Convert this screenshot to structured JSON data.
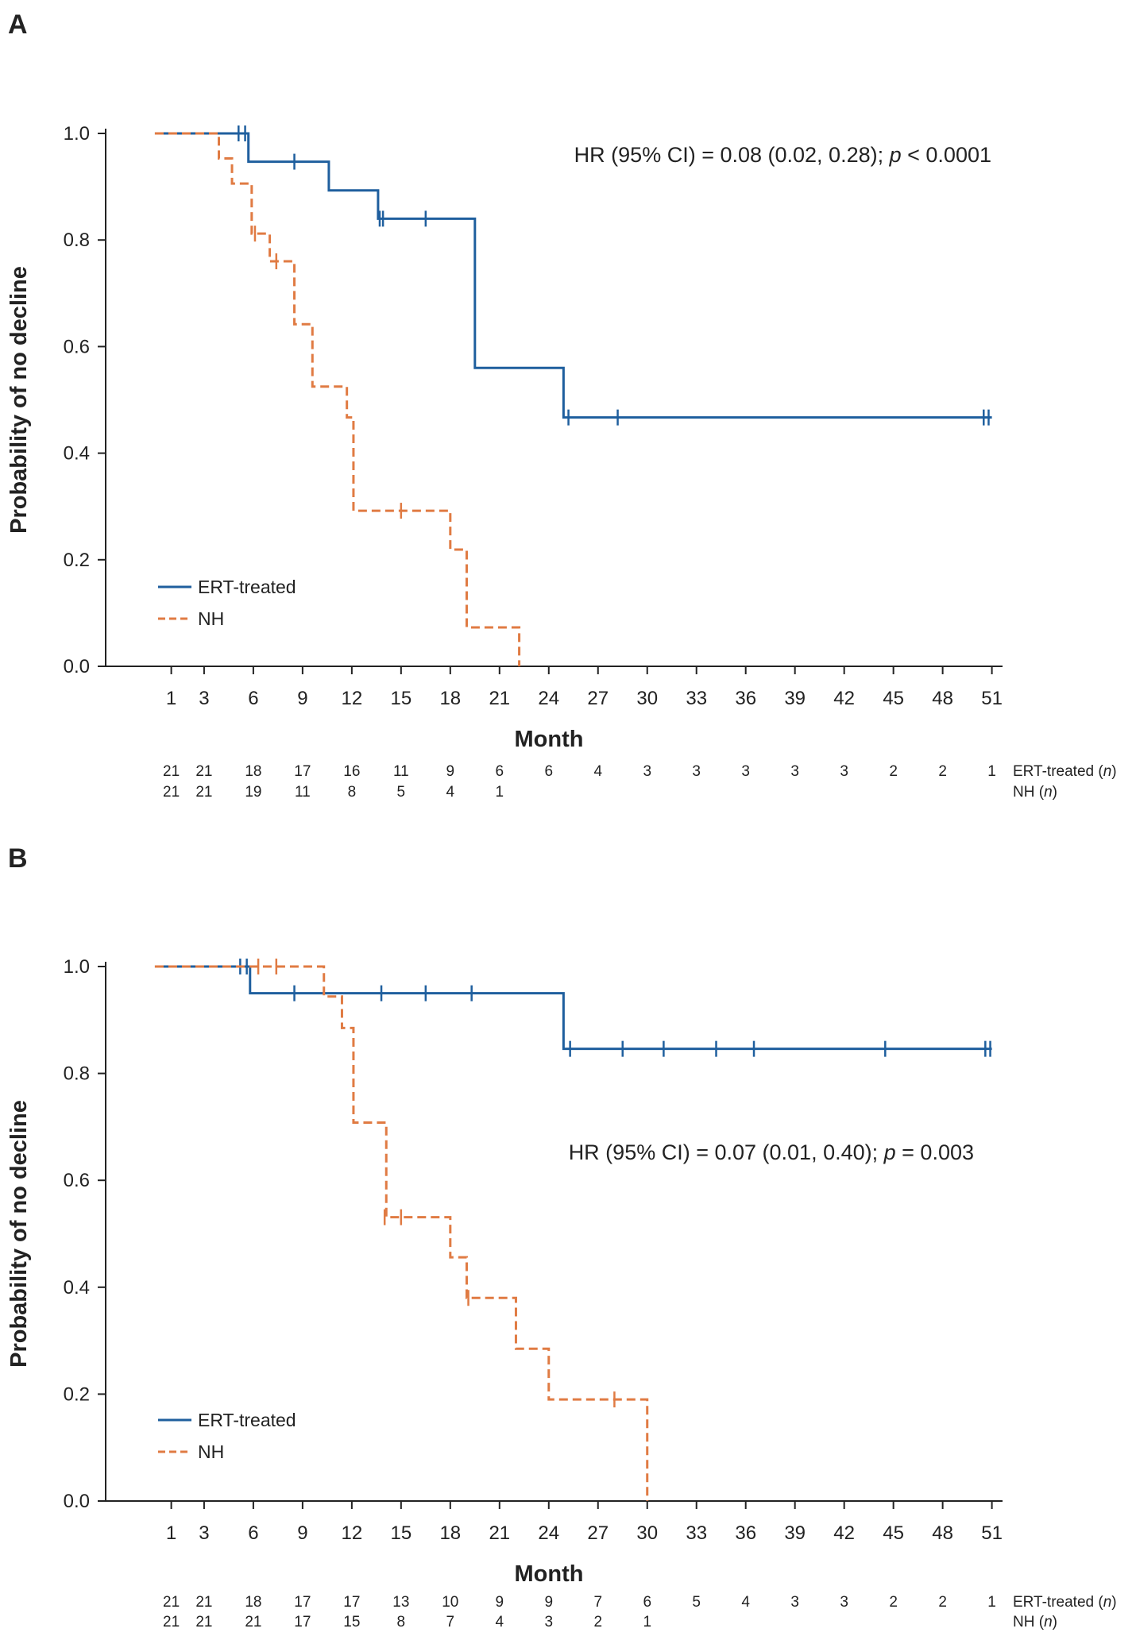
{
  "chart_data": [
    {
      "type": "line",
      "subtype": "kaplan-meier",
      "panel_label": "A",
      "xlabel": "Month",
      "ylabel": "Probability of no decline",
      "xticks": [
        1,
        3,
        6,
        9,
        12,
        15,
        18,
        21,
        24,
        27,
        30,
        33,
        36,
        39,
        42,
        45,
        48,
        51
      ],
      "yticks": [
        "0.0",
        "0.2",
        "0.4",
        "0.6",
        "0.8",
        "1.0"
      ],
      "xlim": [
        -1,
        52
      ],
      "ylim": [
        0,
        1
      ],
      "annotation": {
        "prefix": "HR (95% CI) = 0.08 (0.02, 0.28); ",
        "p": "p",
        "suffix": " < 0.0001"
      },
      "legend": [
        {
          "name": "ERT-treated",
          "style": "solid"
        },
        {
          "name": "NH",
          "style": "dashed"
        }
      ],
      "series": [
        {
          "name": "ERT-treated",
          "color": "#1f5f9e",
          "steps": [
            [
              0,
              1.0
            ],
            [
              5.7,
              0.947
            ],
            [
              10.6,
              0.893
            ],
            [
              13.6,
              0.84
            ],
            [
              19.5,
              0.56
            ],
            [
              24.9,
              0.467
            ],
            [
              51,
              0.467
            ]
          ],
          "censored": [
            [
              5.1,
              1.0
            ],
            [
              5.5,
              1.0
            ],
            [
              8.5,
              0.947
            ],
            [
              13.7,
              0.84
            ],
            [
              13.9,
              0.84
            ],
            [
              16.5,
              0.84
            ],
            [
              25.2,
              0.467
            ],
            [
              28.2,
              0.467
            ],
            [
              50.5,
              0.467
            ],
            [
              50.8,
              0.467
            ]
          ]
        },
        {
          "name": "NH",
          "color": "#e07b43",
          "steps": [
            [
              0,
              1.0
            ],
            [
              3.9,
              0.953
            ],
            [
              4.7,
              0.906
            ],
            [
              5.9,
              0.812
            ],
            [
              7.0,
              0.76
            ],
            [
              8.5,
              0.642
            ],
            [
              9.6,
              0.525
            ],
            [
              11.7,
              0.467
            ],
            [
              12.1,
              0.292
            ],
            [
              18.0,
              0.219
            ],
            [
              19.0,
              0.073
            ],
            [
              22.2,
              0.0
            ]
          ],
          "censored": [
            [
              6.1,
              0.812
            ],
            [
              7.4,
              0.76
            ],
            [
              15.0,
              0.292
            ]
          ]
        }
      ],
      "risk_table": {
        "x": [
          1,
          3,
          6,
          9,
          12,
          15,
          18,
          21,
          24,
          27,
          30,
          33,
          36,
          39,
          42,
          45,
          48,
          51
        ],
        "rows": [
          {
            "label": "ERT-treated",
            "n_label": "n",
            "values": [
              "21",
              "21",
              "18",
              "17",
              "16",
              "11",
              "9",
              "6",
              "6",
              "4",
              "3",
              "3",
              "3",
              "3",
              "3",
              "2",
              "2",
              "1"
            ]
          },
          {
            "label": "NH",
            "n_label": "n",
            "values": [
              "21",
              "21",
              "19",
              "11",
              "8",
              "5",
              "4",
              "1",
              "",
              "",
              "",
              "",
              "",
              "",
              "",
              "",
              "",
              ""
            ]
          }
        ]
      }
    },
    {
      "type": "line",
      "subtype": "kaplan-meier",
      "panel_label": "B",
      "xlabel": "Month",
      "ylabel": "Probability of no decline",
      "xticks": [
        1,
        3,
        6,
        9,
        12,
        15,
        18,
        21,
        24,
        27,
        30,
        33,
        36,
        39,
        42,
        45,
        48,
        51
      ],
      "yticks": [
        "0.0",
        "0.2",
        "0.4",
        "0.6",
        "0.8",
        "1.0"
      ],
      "xlim": [
        -1,
        52
      ],
      "ylim": [
        0,
        1
      ],
      "annotation": {
        "prefix": "HR (95% CI) = 0.07 (0.01, 0.40); ",
        "p": "p",
        "suffix": " = 0.003"
      },
      "legend": [
        {
          "name": "ERT-treated",
          "style": "solid"
        },
        {
          "name": "NH",
          "style": "dashed"
        }
      ],
      "series": [
        {
          "name": "ERT-treated",
          "color": "#1f5f9e",
          "steps": [
            [
              0,
              1.0
            ],
            [
              5.8,
              0.95
            ],
            [
              24.9,
              0.846
            ],
            [
              51,
              0.846
            ]
          ],
          "censored": [
            [
              5.2,
              1.0
            ],
            [
              5.6,
              1.0
            ],
            [
              8.5,
              0.95
            ],
            [
              13.8,
              0.95
            ],
            [
              16.5,
              0.95
            ],
            [
              19.3,
              0.95
            ],
            [
              25.3,
              0.846
            ],
            [
              28.5,
              0.846
            ],
            [
              31.0,
              0.846
            ],
            [
              34.2,
              0.846
            ],
            [
              36.5,
              0.846
            ],
            [
              44.5,
              0.846
            ],
            [
              50.6,
              0.846
            ],
            [
              50.9,
              0.846
            ]
          ]
        },
        {
          "name": "NH",
          "color": "#e07b43",
          "steps": [
            [
              0,
              1.0
            ],
            [
              10.3,
              0.944
            ],
            [
              11.4,
              0.885
            ],
            [
              12.1,
              0.708
            ],
            [
              14.1,
              0.531
            ],
            [
              18.0,
              0.456
            ],
            [
              19.0,
              0.38
            ],
            [
              22.0,
              0.285
            ],
            [
              24.0,
              0.19
            ],
            [
              30.0,
              0.0
            ]
          ],
          "censored": [
            [
              6.3,
              1.0
            ],
            [
              7.4,
              1.0
            ],
            [
              14.0,
              0.531
            ],
            [
              15.0,
              0.531
            ],
            [
              19.1,
              0.38
            ],
            [
              28.0,
              0.19
            ]
          ]
        }
      ],
      "risk_table": {
        "x": [
          1,
          3,
          6,
          9,
          12,
          15,
          18,
          21,
          24,
          27,
          30,
          33,
          36,
          39,
          42,
          45,
          48,
          51
        ],
        "rows": [
          {
            "label": "ERT-treated",
            "n_label": "n",
            "values": [
              "21",
              "21",
              "18",
              "17",
              "17",
              "13",
              "10",
              "9",
              "9",
              "7",
              "6",
              "5",
              "4",
              "3",
              "3",
              "2",
              "2",
              "1"
            ]
          },
          {
            "label": "NH",
            "n_label": "n",
            "values": [
              "21",
              "21",
              "21",
              "17",
              "15",
              "8",
              "7",
              "4",
              "3",
              "2",
              "1",
              "",
              "",
              "",
              "",
              "",
              "",
              ""
            ]
          }
        ]
      }
    }
  ]
}
